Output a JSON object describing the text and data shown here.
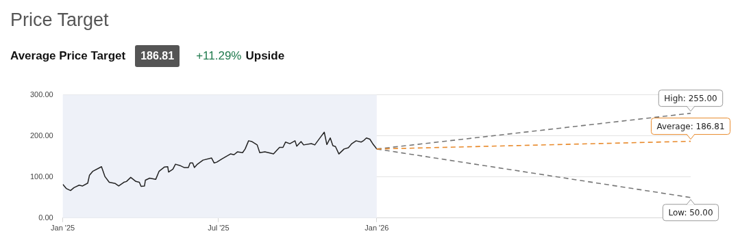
{
  "chart_data": {
    "type": "line",
    "title": "Price Target",
    "subtitle": "Average Price Target",
    "annotations": [
      "186.81",
      "+11.29%",
      "Upside",
      {
        "text": "High: 255.00",
        "x": "2027-01-01",
        "y": 255
      },
      {
        "text": "Average: 186.81",
        "x": "2027-01-01",
        "y": 186.81
      },
      {
        "text": "Low: 50.00",
        "x": "2027-01-01",
        "y": 50
      }
    ],
    "series": [
      {
        "color": "#222222",
        "line_style": "solid",
        "x": [
          "2025-01-01",
          "2025-01-05",
          "2025-01-10",
          "2025-01-14",
          "2025-01-20",
          "2025-01-24",
          "2025-01-30",
          "2025-02-01",
          "2025-02-05",
          "2025-02-15",
          "2025-02-19",
          "2025-02-24",
          "2025-03-03",
          "2025-03-07",
          "2025-03-13",
          "2025-03-16",
          "2025-03-21",
          "2025-03-27",
          "2025-03-31",
          "2025-04-02",
          "2025-04-06",
          "2025-04-07",
          "2025-04-12",
          "2025-04-19",
          "2025-04-23",
          "2025-04-29",
          "2025-05-03",
          "2025-05-04",
          "2025-05-09",
          "2025-05-12",
          "2025-05-17",
          "2025-05-22",
          "2025-05-27",
          "2025-05-29",
          "2025-06-01",
          "2025-06-03",
          "2025-06-06",
          "2025-06-13",
          "2025-06-23",
          "2025-06-26",
          "2025-06-29",
          "2025-07-05",
          "2025-07-15",
          "2025-07-19",
          "2025-07-23",
          "2025-07-29",
          "2025-08-01",
          "2025-08-05",
          "2025-08-09",
          "2025-08-15",
          "2025-08-18",
          "2025-08-24",
          "2025-09-03",
          "2025-09-10",
          "2025-09-14",
          "2025-09-17",
          "2025-09-22",
          "2025-09-28",
          "2025-09-30",
          "2025-10-05",
          "2025-10-08",
          "2025-10-17",
          "2025-10-21",
          "2025-10-27",
          "2025-11-01",
          "2025-11-04",
          "2025-11-08",
          "2025-11-11",
          "2025-11-14",
          "2025-11-18",
          "2025-11-24",
          "2025-11-29",
          "2025-12-03",
          "2025-12-08",
          "2025-12-14",
          "2025-12-17",
          "2025-12-20",
          "2025-12-24",
          "2025-12-28",
          "2025-12-31",
          "2026-01-01"
        ],
        "values": [
          82,
          72,
          67,
          74,
          80,
          78,
          85,
          104,
          114,
          125,
          101,
          87,
          84,
          78,
          87,
          89,
          99,
          89,
          87,
          77,
          78,
          92,
          97,
          94,
          114,
          124,
          125,
          112,
          119,
          131,
          128,
          123,
          123,
          134,
          134,
          123,
          130,
          141,
          146,
          134,
          136,
          144,
          156,
          154,
          161,
          159,
          168,
          188,
          186,
          178,
          159,
          161,
          156,
          172,
          172,
          185,
          181,
          188,
          175,
          186,
          178,
          181,
          178,
          195,
          209,
          179,
          195,
          176,
          174,
          156,
          168,
          171,
          181,
          188,
          185,
          189,
          195,
          192,
          179,
          171,
          168
        ]
      },
      {
        "color": "#777777",
        "line_style": "dashed",
        "x": [
          "2026-01-01",
          "2027-01-01"
        ],
        "values": [
          168,
          255
        ]
      },
      {
        "color": "#777777",
        "line_style": "dashed",
        "x": [
          "2026-01-01",
          "2027-01-01"
        ],
        "values": [
          168,
          50
        ]
      },
      {
        "color": "#e8892a",
        "line_style": "dashed",
        "x": [
          "2026-01-01",
          "2027-01-01"
        ],
        "values": [
          168,
          186.81
        ]
      }
    ],
    "bands": [
      {
        "axis": "x",
        "from": "2025-01-01",
        "to": "2026-01-01",
        "color": "#eef1f8"
      }
    ],
    "xlim": [
      "2025-01-01",
      "2027-01-01"
    ],
    "xticks": [
      {
        "value": "2025-01-01",
        "label": "Jan '25"
      },
      {
        "value": "2025-07-01",
        "label": "Jul '25"
      },
      {
        "value": "2026-01-01",
        "label": "Jan '26"
      }
    ],
    "ylim": [
      0,
      300
    ],
    "yticks": [
      {
        "value": 0,
        "label": "0.00"
      },
      {
        "value": 100,
        "label": "100.00"
      },
      {
        "value": 200,
        "label": "200.00"
      },
      {
        "value": 300,
        "label": "300.00"
      }
    ],
    "grid": "y",
    "legend": false,
    "marker": "none"
  }
}
